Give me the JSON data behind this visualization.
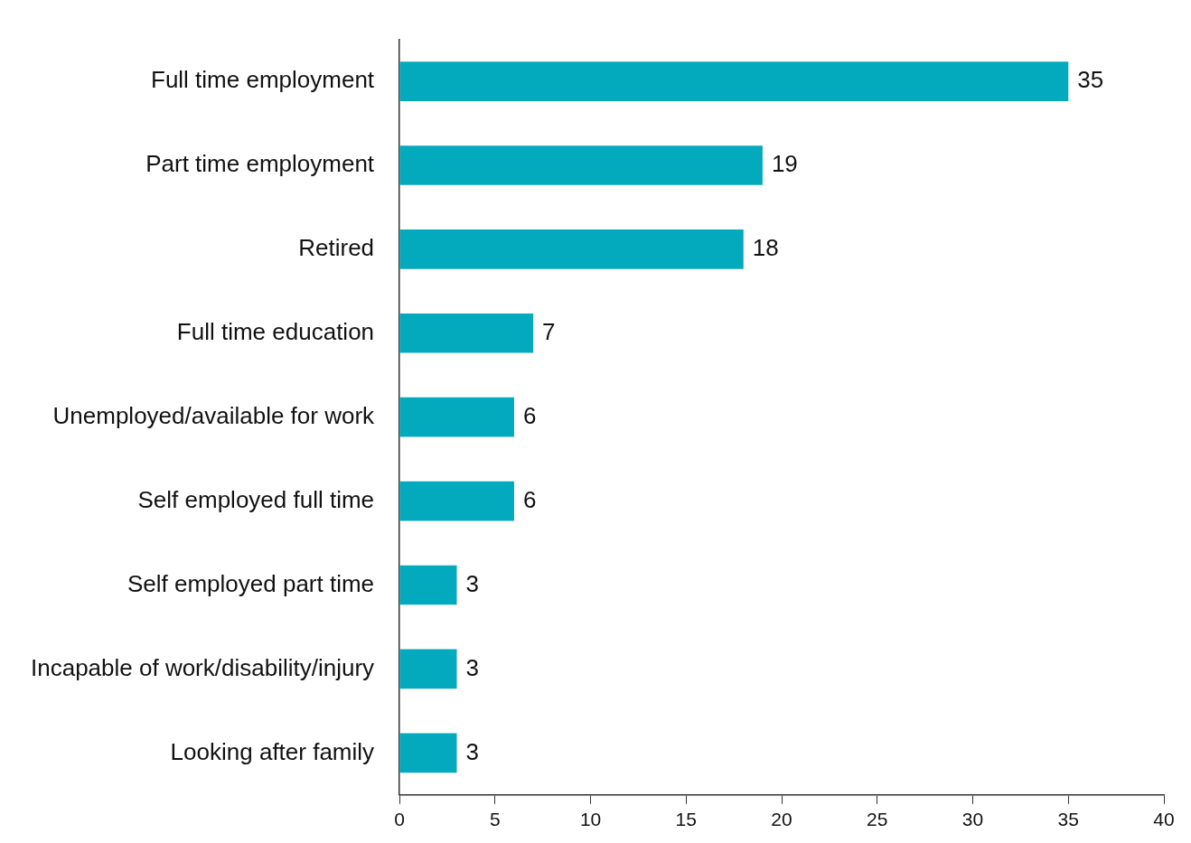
{
  "chart_data": {
    "type": "bar",
    "orientation": "horizontal",
    "categories": [
      "Full time employment",
      "Part time employment",
      "Retired",
      "Full time education",
      "Unemployed/available for work",
      "Self employed full time",
      "Self employed part time",
      "Incapable of work/disability/injury",
      "Looking after family"
    ],
    "values": [
      35,
      19,
      18,
      7,
      6,
      6,
      3,
      3,
      3
    ],
    "color": "#03a9bc",
    "xlim": [
      0,
      40
    ],
    "xticks": [
      0,
      5,
      10,
      15,
      20,
      25,
      30,
      35,
      40
    ],
    "data_labels": true,
    "grid": false,
    "legend": false
  }
}
